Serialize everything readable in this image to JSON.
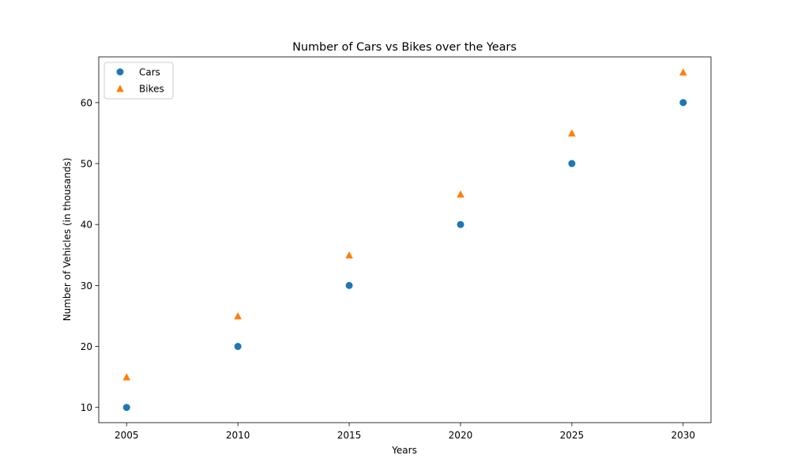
{
  "chart_data": {
    "type": "scatter",
    "title": "Number of Cars vs Bikes over the Years",
    "xlabel": "Years",
    "ylabel": "Number of Vehicles (in thousands)",
    "x": [
      2005,
      2010,
      2015,
      2020,
      2025,
      2030
    ],
    "xlim": [
      2003.75,
      2031.25
    ],
    "ylim": [
      7.5,
      67.5
    ],
    "xticks": [
      2005,
      2010,
      2015,
      2020,
      2025,
      2030
    ],
    "yticks": [
      10,
      20,
      30,
      40,
      50,
      60
    ],
    "grid": false,
    "legend_position": "upper-left",
    "series": [
      {
        "name": "Cars",
        "marker": "circle",
        "color": "#1f77b4",
        "values": [
          10,
          20,
          30,
          40,
          50,
          60
        ]
      },
      {
        "name": "Bikes",
        "marker": "triangle",
        "color": "#ff7f0e",
        "values": [
          15,
          25,
          35,
          45,
          55,
          65
        ]
      }
    ]
  }
}
